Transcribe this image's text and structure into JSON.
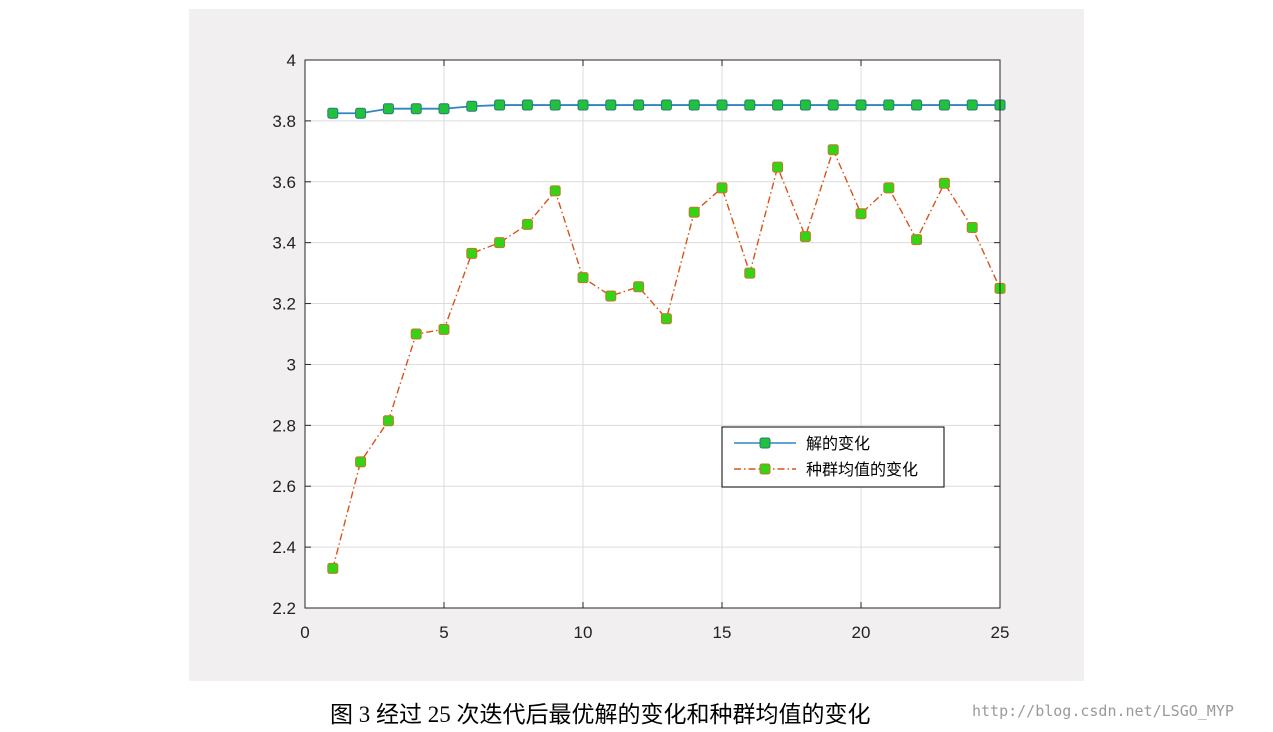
{
  "chart_data": {
    "type": "line",
    "title": "",
    "xlabel": "",
    "ylabel": "",
    "xlim": [
      0,
      25
    ],
    "ylim": [
      2.2,
      4
    ],
    "xticks": [
      0,
      5,
      10,
      15,
      20,
      25
    ],
    "xtick_labels": [
      "0",
      "5",
      "10",
      "15",
      "20",
      "25"
    ],
    "yticks": [
      2.2,
      2.4,
      2.6,
      2.8,
      3,
      3.2,
      3.4,
      3.6,
      3.8,
      4
    ],
    "ytick_labels": [
      "2.2",
      "2.4",
      "2.6",
      "2.8",
      "3",
      "3.2",
      "3.4",
      "3.6",
      "3.8",
      "4"
    ],
    "grid": true,
    "legend_position": "right",
    "x": [
      1,
      2,
      3,
      4,
      5,
      6,
      7,
      8,
      9,
      10,
      11,
      12,
      13,
      14,
      15,
      16,
      17,
      18,
      19,
      20,
      21,
      22,
      23,
      24,
      25
    ],
    "series": [
      {
        "name": "解的变化",
        "line_style": "solid",
        "color": "#2e86c1",
        "marker_color": "#21c23b",
        "values": [
          3.825,
          3.825,
          3.84,
          3.84,
          3.84,
          3.848,
          3.852,
          3.852,
          3.852,
          3.852,
          3.852,
          3.852,
          3.852,
          3.852,
          3.852,
          3.852,
          3.852,
          3.852,
          3.852,
          3.852,
          3.852,
          3.852,
          3.852,
          3.852,
          3.852
        ]
      },
      {
        "name": "种群均值的变化",
        "line_style": "dash-dot",
        "color": "#d95319",
        "marker_color": "#32d414",
        "values": [
          2.33,
          2.68,
          2.815,
          3.1,
          3.115,
          3.365,
          3.4,
          3.46,
          3.57,
          3.285,
          3.225,
          3.255,
          3.15,
          3.5,
          3.58,
          3.3,
          3.648,
          3.42,
          3.705,
          3.495,
          3.58,
          3.41,
          3.595,
          3.45,
          3.25
        ]
      }
    ]
  },
  "caption": "图 3  经过 25 次迭代后最优解的变化和种群均值的变化",
  "watermark": "http://blog.csdn.net/LSGO_MYP"
}
